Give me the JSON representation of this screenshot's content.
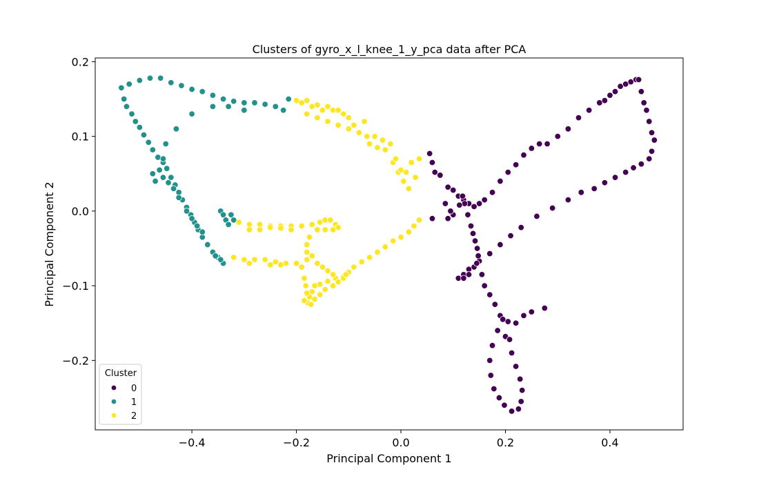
{
  "chart_data": {
    "type": "scatter",
    "title": "Clusters of gyro_x_l_knee_1_y_pca data after PCA",
    "xlabel": "Principal Component 1",
    "ylabel": "Principal Component 2",
    "xlim": [
      -0.585,
      0.54
    ],
    "ylim": [
      -0.293,
      0.205
    ],
    "xticks": [
      -0.4,
      -0.2,
      0.0,
      0.2,
      0.4
    ],
    "xtick_labels": [
      "−0.4",
      "−0.2",
      "0.0",
      "0.2",
      "0.4"
    ],
    "yticks": [
      -0.2,
      -0.1,
      0.0,
      0.1,
      0.2
    ],
    "ytick_labels": [
      "−0.2",
      "−0.1",
      "0.0",
      "0.1",
      "0.2"
    ],
    "grid": false,
    "legend": {
      "title": "Cluster",
      "placement": "lower-left"
    },
    "series": [
      {
        "name": "0",
        "color": "#440154",
        "points": [
          [
            0.055,
            0.077
          ],
          [
            0.06,
            0.065
          ],
          [
            0.065,
            0.052
          ],
          [
            0.075,
            0.048
          ],
          [
            0.09,
            0.032
          ],
          [
            0.1,
            0.028
          ],
          [
            0.11,
            0.02
          ],
          [
            0.12,
            0.015
          ],
          [
            0.13,
            0.01
          ],
          [
            0.14,
            0.006
          ],
          [
            0.15,
            0.01
          ],
          [
            0.16,
            0.015
          ],
          [
            0.175,
            0.025
          ],
          [
            0.19,
            0.04
          ],
          [
            0.205,
            0.052
          ],
          [
            0.22,
            0.062
          ],
          [
            0.235,
            0.075
          ],
          [
            0.25,
            0.084
          ],
          [
            0.265,
            0.09
          ],
          [
            0.28,
            0.09
          ],
          [
            0.3,
            0.1
          ],
          [
            0.32,
            0.11
          ],
          [
            0.34,
            0.125
          ],
          [
            0.36,
            0.135
          ],
          [
            0.38,
            0.145
          ],
          [
            0.39,
            0.148
          ],
          [
            0.4,
            0.155
          ],
          [
            0.41,
            0.16
          ],
          [
            0.42,
            0.167
          ],
          [
            0.43,
            0.17
          ],
          [
            0.44,
            0.173
          ],
          [
            0.45,
            0.176
          ],
          [
            0.455,
            0.176
          ],
          [
            0.46,
            0.16
          ],
          [
            0.465,
            0.145
          ],
          [
            0.47,
            0.135
          ],
          [
            0.475,
            0.12
          ],
          [
            0.48,
            0.105
          ],
          [
            0.485,
            0.095
          ],
          [
            0.48,
            0.08
          ],
          [
            0.475,
            0.07
          ],
          [
            0.46,
            0.063
          ],
          [
            0.445,
            0.058
          ],
          [
            0.43,
            0.052
          ],
          [
            0.41,
            0.045
          ],
          [
            0.39,
            0.038
          ],
          [
            0.37,
            0.03
          ],
          [
            0.345,
            0.025
          ],
          [
            0.32,
            0.015
          ],
          [
            0.29,
            0.004
          ],
          [
            0.26,
            -0.007
          ],
          [
            0.23,
            -0.022
          ],
          [
            0.21,
            -0.033
          ],
          [
            0.19,
            -0.045
          ],
          [
            0.17,
            -0.057
          ],
          [
            0.15,
            -0.067
          ],
          [
            0.13,
            -0.078
          ],
          [
            0.12,
            -0.085
          ],
          [
            0.11,
            -0.09
          ],
          [
            0.12,
            -0.09
          ],
          [
            0.13,
            -0.085
          ],
          [
            0.14,
            -0.075
          ],
          [
            0.145,
            -0.07
          ],
          [
            0.148,
            -0.06
          ],
          [
            0.146,
            -0.05
          ],
          [
            0.142,
            -0.04
          ],
          [
            0.138,
            -0.03
          ],
          [
            0.134,
            -0.02
          ],
          [
            0.128,
            -0.005
          ],
          [
            0.122,
            0.01
          ],
          [
            0.118,
            0.02
          ],
          [
            0.112,
            0.008
          ],
          [
            0.1,
            -0.005
          ],
          [
            0.095,
            0.0
          ],
          [
            0.085,
            0.01
          ],
          [
            0.09,
            -0.01
          ],
          [
            0.06,
            -0.01
          ],
          [
            0.155,
            -0.085
          ],
          [
            0.16,
            -0.1
          ],
          [
            0.17,
            -0.112
          ],
          [
            0.18,
            -0.125
          ],
          [
            0.19,
            -0.14
          ],
          [
            0.205,
            -0.148
          ],
          [
            0.22,
            -0.15
          ],
          [
            0.235,
            -0.14
          ],
          [
            0.25,
            -0.135
          ],
          [
            0.275,
            -0.13
          ],
          [
            0.185,
            -0.16
          ],
          [
            0.2,
            -0.168
          ],
          [
            0.175,
            -0.18
          ],
          [
            0.17,
            -0.2
          ],
          [
            0.172,
            -0.22
          ],
          [
            0.178,
            -0.238
          ],
          [
            0.188,
            -0.25
          ],
          [
            0.198,
            -0.26
          ],
          [
            0.212,
            -0.268
          ],
          [
            0.225,
            -0.265
          ],
          [
            0.23,
            -0.255
          ],
          [
            0.232,
            -0.24
          ],
          [
            0.228,
            -0.225
          ],
          [
            0.22,
            -0.208
          ],
          [
            0.212,
            -0.19
          ],
          [
            0.208,
            -0.172
          ],
          [
            0.195,
            -0.145
          ]
        ]
      },
      {
        "name": "1",
        "color": "#21918c",
        "points": [
          [
            -0.535,
            0.165
          ],
          [
            -0.53,
            0.15
          ],
          [
            -0.525,
            0.14
          ],
          [
            -0.515,
            0.13
          ],
          [
            -0.508,
            0.12
          ],
          [
            -0.5,
            0.112
          ],
          [
            -0.492,
            0.102
          ],
          [
            -0.483,
            0.092
          ],
          [
            -0.475,
            0.082
          ],
          [
            -0.465,
            0.072
          ],
          [
            -0.455,
            0.065
          ],
          [
            -0.448,
            0.057
          ],
          [
            -0.44,
            0.045
          ],
          [
            -0.432,
            0.035
          ],
          [
            -0.425,
            0.025
          ],
          [
            -0.418,
            0.015
          ],
          [
            -0.41,
            0.005
          ],
          [
            -0.402,
            -0.005
          ],
          [
            -0.395,
            -0.015
          ],
          [
            -0.388,
            -0.025
          ],
          [
            -0.38,
            -0.035
          ],
          [
            -0.37,
            -0.045
          ],
          [
            -0.36,
            -0.055
          ],
          [
            -0.35,
            -0.062
          ],
          [
            -0.34,
            -0.07
          ],
          [
            -0.455,
            0.045
          ],
          [
            -0.445,
            0.038
          ],
          [
            -0.435,
            0.03
          ],
          [
            -0.425,
            0.018
          ],
          [
            -0.41,
            0.0
          ],
          [
            -0.4,
            -0.01
          ],
          [
            -0.39,
            -0.02
          ],
          [
            -0.38,
            -0.028
          ],
          [
            -0.37,
            -0.045
          ],
          [
            -0.355,
            -0.06
          ],
          [
            -0.345,
            -0.065
          ],
          [
            -0.345,
            0.0
          ],
          [
            -0.34,
            -0.005
          ],
          [
            -0.335,
            -0.012
          ],
          [
            -0.33,
            -0.018
          ],
          [
            -0.325,
            -0.005
          ],
          [
            -0.32,
            -0.012
          ],
          [
            -0.52,
            0.17
          ],
          [
            -0.5,
            0.175
          ],
          [
            -0.48,
            0.178
          ],
          [
            -0.46,
            0.178
          ],
          [
            -0.44,
            0.172
          ],
          [
            -0.42,
            0.168
          ],
          [
            -0.4,
            0.163
          ],
          [
            -0.38,
            0.16
          ],
          [
            -0.36,
            0.155
          ],
          [
            -0.34,
            0.15
          ],
          [
            -0.32,
            0.147
          ],
          [
            -0.3,
            0.145
          ],
          [
            -0.28,
            0.145
          ],
          [
            -0.26,
            0.143
          ],
          [
            -0.24,
            0.14
          ],
          [
            -0.225,
            0.135
          ],
          [
            -0.215,
            0.15
          ],
          [
            -0.3,
            0.135
          ],
          [
            -0.33,
            0.14
          ],
          [
            -0.36,
            0.14
          ],
          [
            -0.4,
            0.13
          ],
          [
            -0.43,
            0.11
          ],
          [
            -0.45,
            0.09
          ],
          [
            -0.455,
            0.07
          ],
          [
            -0.462,
            0.055
          ],
          [
            -0.47,
            0.04
          ],
          [
            -0.475,
            0.05
          ]
        ]
      },
      {
        "name": "2",
        "color": "#fde725",
        "points": [
          [
            -0.2,
            0.148
          ],
          [
            -0.19,
            0.145
          ],
          [
            -0.18,
            0.148
          ],
          [
            -0.17,
            0.14
          ],
          [
            -0.16,
            0.142
          ],
          [
            -0.15,
            0.135
          ],
          [
            -0.14,
            0.14
          ],
          [
            -0.13,
            0.135
          ],
          [
            -0.12,
            0.135
          ],
          [
            -0.11,
            0.13
          ],
          [
            -0.1,
            0.125
          ],
          [
            -0.09,
            0.115
          ],
          [
            -0.08,
            0.105
          ],
          [
            -0.07,
            0.12
          ],
          [
            -0.065,
            0.1
          ],
          [
            -0.06,
            0.09
          ],
          [
            -0.05,
            0.1
          ],
          [
            -0.045,
            0.085
          ],
          [
            -0.035,
            0.095
          ],
          [
            -0.03,
            0.082
          ],
          [
            -0.02,
            0.09
          ],
          [
            -0.015,
            0.065
          ],
          [
            -0.01,
            0.07
          ],
          [
            -0.005,
            0.052
          ],
          [
            0.0,
            0.055
          ],
          [
            0.005,
            0.04
          ],
          [
            0.01,
            0.052
          ],
          [
            0.015,
            0.03
          ],
          [
            0.02,
            0.065
          ],
          [
            0.028,
            0.045
          ],
          [
            0.035,
            0.07
          ],
          [
            -0.18,
            0.13
          ],
          [
            -0.16,
            0.125
          ],
          [
            -0.14,
            0.12
          ],
          [
            -0.12,
            0.115
          ],
          [
            -0.1,
            0.11
          ],
          [
            0.035,
            -0.012
          ],
          [
            0.025,
            -0.02
          ],
          [
            0.015,
            -0.028
          ],
          [
            0.0,
            -0.035
          ],
          [
            -0.015,
            -0.04
          ],
          [
            -0.03,
            -0.048
          ],
          [
            -0.045,
            -0.055
          ],
          [
            -0.06,
            -0.062
          ],
          [
            -0.075,
            -0.068
          ],
          [
            -0.09,
            -0.075
          ],
          [
            -0.1,
            -0.082
          ],
          [
            -0.11,
            -0.088
          ],
          [
            -0.125,
            -0.09
          ],
          [
            -0.14,
            -0.094
          ],
          [
            -0.155,
            -0.098
          ],
          [
            -0.165,
            -0.1
          ],
          [
            -0.17,
            -0.108
          ],
          [
            -0.175,
            -0.115
          ],
          [
            -0.178,
            -0.123
          ],
          [
            -0.172,
            -0.125
          ],
          [
            -0.165,
            -0.118
          ],
          [
            -0.155,
            -0.112
          ],
          [
            -0.145,
            -0.105
          ],
          [
            -0.13,
            -0.1
          ],
          [
            -0.12,
            -0.095
          ],
          [
            -0.11,
            -0.09
          ],
          [
            -0.105,
            -0.085
          ],
          [
            -0.185,
            -0.09
          ],
          [
            -0.182,
            -0.1
          ],
          [
            -0.18,
            -0.11
          ],
          [
            -0.185,
            -0.12
          ],
          [
            -0.19,
            -0.075
          ],
          [
            -0.18,
            -0.065
          ],
          [
            -0.17,
            -0.06
          ],
          [
            -0.16,
            -0.07
          ],
          [
            -0.15,
            -0.075
          ],
          [
            -0.14,
            -0.08
          ],
          [
            -0.13,
            -0.085
          ],
          [
            -0.32,
            -0.062
          ],
          [
            -0.3,
            -0.065
          ],
          [
            -0.28,
            -0.065
          ],
          [
            -0.26,
            -0.065
          ],
          [
            -0.24,
            -0.068
          ],
          [
            -0.22,
            -0.07
          ],
          [
            -0.2,
            -0.07
          ],
          [
            -0.29,
            -0.07
          ],
          [
            -0.25,
            -0.072
          ],
          [
            -0.23,
            -0.072
          ],
          [
            -0.31,
            -0.015
          ],
          [
            -0.29,
            -0.018
          ],
          [
            -0.27,
            -0.018
          ],
          [
            -0.25,
            -0.02
          ],
          [
            -0.23,
            -0.02
          ],
          [
            -0.21,
            -0.02
          ],
          [
            -0.19,
            -0.02
          ],
          [
            -0.17,
            -0.018
          ],
          [
            -0.155,
            -0.015
          ],
          [
            -0.145,
            -0.012
          ],
          [
            -0.135,
            -0.012
          ],
          [
            -0.125,
            -0.018
          ],
          [
            -0.12,
            -0.022
          ],
          [
            -0.13,
            -0.025
          ],
          [
            -0.145,
            -0.025
          ],
          [
            -0.16,
            -0.025
          ],
          [
            -0.29,
            -0.025
          ],
          [
            -0.27,
            -0.025
          ],
          [
            -0.25,
            -0.022
          ],
          [
            -0.23,
            -0.023
          ],
          [
            -0.21,
            -0.025
          ],
          [
            -0.175,
            -0.035
          ],
          [
            -0.18,
            -0.045
          ],
          [
            -0.18,
            -0.055
          ]
        ]
      }
    ]
  }
}
